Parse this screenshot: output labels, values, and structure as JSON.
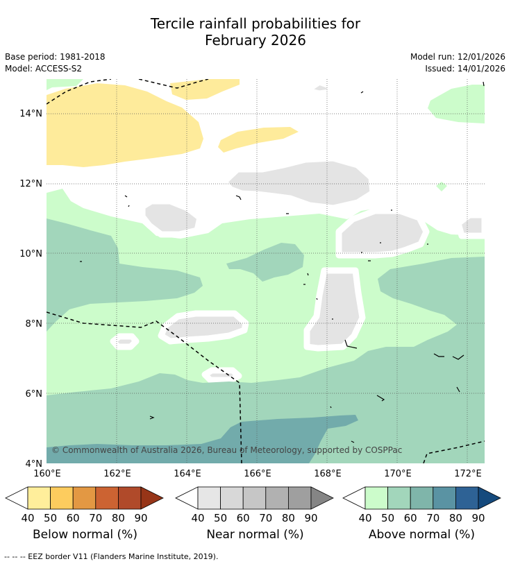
{
  "title": {
    "line1": "Tercile rainfall probabilities for",
    "line2": "February 2026"
  },
  "meta": {
    "base_period": "Base period: 1981-2018",
    "model": "Model: ACCESS-S2",
    "model_run": "Model run: 12/01/2026",
    "issued": "Issued: 14/01/2026"
  },
  "map": {
    "lat_labels": [
      "14°N",
      "12°N",
      "10°N",
      "8°N",
      "6°N",
      "4°N"
    ],
    "lon_labels": [
      "160°E",
      "162°E",
      "164°E",
      "166°E",
      "168°E",
      "170°E",
      "172°E"
    ],
    "copyright": "© Commonwealth of Australia 2026, Bureau of Meteorology, supported by COSPPac",
    "colors": {
      "below_50": "#feeb9b",
      "near_50": "#e4e4e4",
      "above_40": "#ccfccb",
      "above_50": "#a2d6bb",
      "above_60": "#72abab",
      "border": "#000000"
    }
  },
  "colorbars": [
    {
      "label": "Below normal (%)",
      "ticks": [
        "40",
        "50",
        "60",
        "70",
        "80",
        "90"
      ],
      "colors": [
        "#ffee9b",
        "#fdcc5e",
        "#e39843",
        "#cc6332",
        "#b04a2a",
        "#973518"
      ]
    },
    {
      "label": "Near normal (%)",
      "ticks": [
        "40",
        "50",
        "60",
        "70",
        "80",
        "90"
      ],
      "colors": [
        "#e6e6e6",
        "#d8d8d8",
        "#c6c6c6",
        "#b1b1b1",
        "#9f9f9f",
        "#858585"
      ]
    },
    {
      "label": "Above normal (%)",
      "ticks": [
        "40",
        "50",
        "60",
        "70",
        "80",
        "90"
      ],
      "colors": [
        "#ccfccb",
        "#a2d6bb",
        "#7fb5aa",
        "#5a93a3",
        "#2e6295",
        "#154a7d"
      ]
    }
  ],
  "footer": "--  --  -- EEZ border V11 (Flanders Marine Institute, 2019)."
}
